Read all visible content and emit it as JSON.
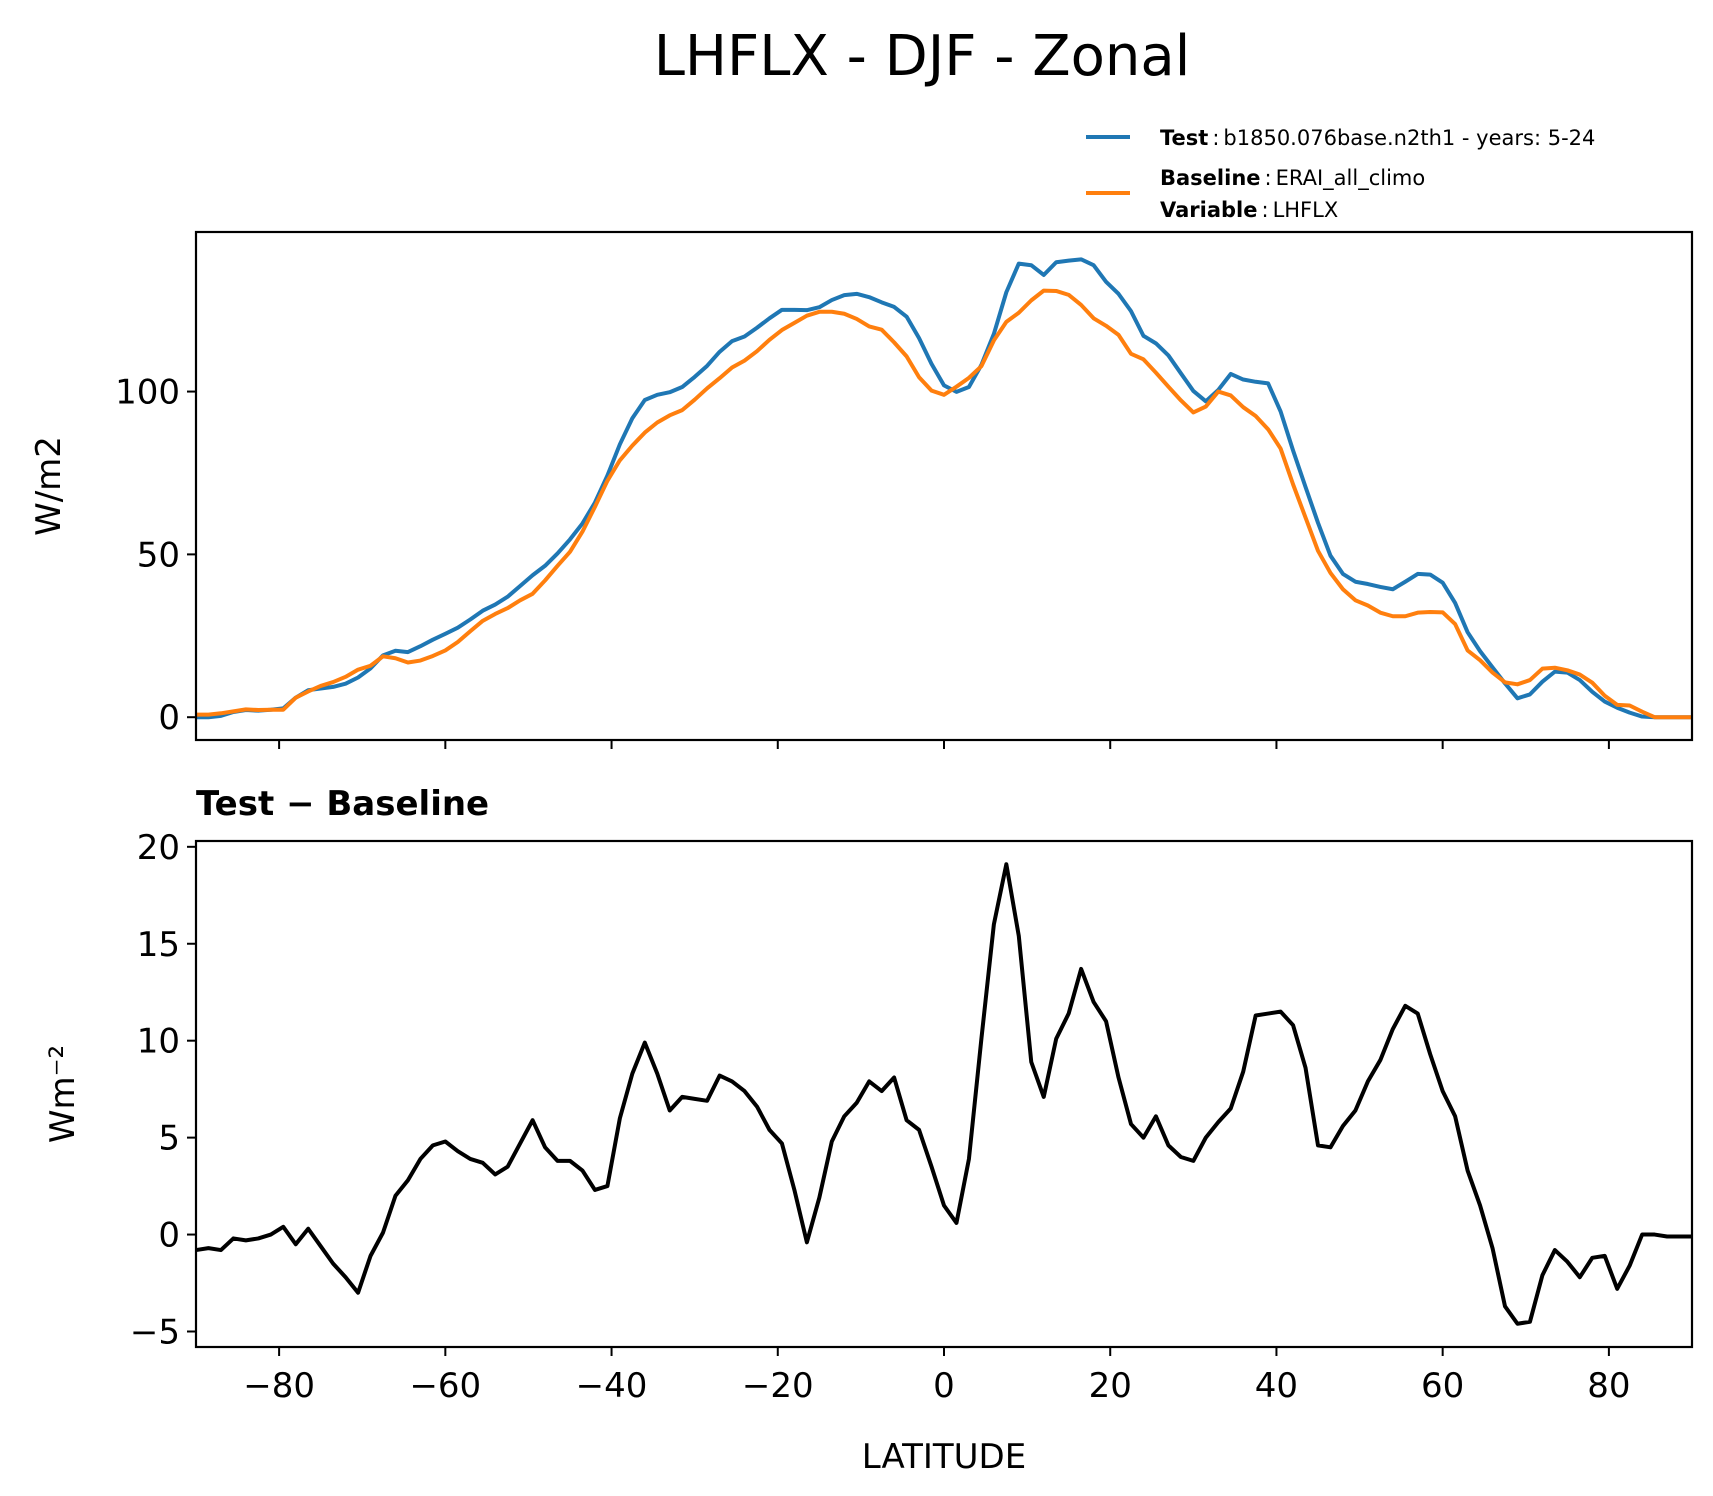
{
  "chart_data": [
    {
      "type": "line",
      "title": "LHFLX - DJF - Zonal",
      "xlabel": "",
      "ylabel": "W/m2",
      "xlim": [
        -90,
        90
      ],
      "ylim": [
        -7,
        149
      ],
      "xticks": [
        -80,
        -60,
        -40,
        -20,
        0,
        20,
        40,
        60,
        80
      ],
      "yticks": [
        0,
        50,
        100
      ],
      "ytick_labels": [
        "0",
        "50",
        "100"
      ],
      "legend": {
        "position": "top-right",
        "entries": [
          {
            "bold": "Test",
            "sep": ":",
            "text": "b1850.076base.n2th1 - years: 5-24",
            "color": "#1f77b4"
          },
          {
            "bold": "Baseline",
            "sep": ":",
            "text": "ERAI_all_climo",
            "color": "#ff7f0e"
          },
          {
            "bold": "Variable",
            "sep": ":",
            "text": "LHFLX"
          }
        ]
      },
      "x": [
        -90,
        -88.5,
        -87,
        -85.5,
        -84,
        -82.5,
        -81,
        -79.5,
        -78,
        -76.5,
        -75,
        -73.5,
        -72,
        -70.5,
        -69,
        -67.5,
        -66,
        -64.5,
        -63,
        -61.5,
        -60,
        -58.5,
        -57,
        -55.5,
        -54,
        -52.5,
        -51,
        -49.5,
        -48,
        -46.5,
        -45,
        -43.5,
        -42,
        -40.5,
        -39,
        -37.5,
        -36,
        -34.5,
        -33,
        -31.5,
        -30,
        -28.5,
        -27,
        -25.5,
        -24,
        -22.5,
        -21,
        -19.5,
        -18,
        -16.5,
        -15,
        -13.5,
        -12,
        -10.5,
        -9,
        -7.5,
        -6,
        -4.5,
        -3,
        -1.5,
        0,
        1.5,
        3,
        4.5,
        6,
        7.5,
        9,
        10.5,
        12,
        13.5,
        15,
        16.5,
        18,
        19.5,
        21,
        22.5,
        24,
        25.5,
        27,
        28.5,
        30,
        31.5,
        33,
        34.5,
        36,
        37.5,
        39,
        40.5,
        42,
        43.5,
        45,
        46.5,
        48,
        49.5,
        51,
        52.5,
        54,
        55.5,
        57,
        58.5,
        60,
        61.5,
        63,
        64.5,
        66,
        67.5,
        69,
        70.5,
        72,
        73.5,
        75,
        76.5,
        78,
        79.5,
        81,
        82.5,
        84,
        85.5,
        87,
        88.5,
        90
      ],
      "series": [
        {
          "name": "Test",
          "color": "#1f77b4",
          "values": [
            0.0,
            0.0,
            0.4,
            1.6,
            2.2,
            2.0,
            2.3,
            2.7,
            6.0,
            8.3,
            8.8,
            9.3,
            10.3,
            12.2,
            15.0,
            19.0,
            20.4,
            20.0,
            21.8,
            23.8,
            25.6,
            27.5,
            30.0,
            32.7,
            34.6,
            37.0,
            40.3,
            43.6,
            46.5,
            50.3,
            54.6,
            59.5,
            65.9,
            74.2,
            83.8,
            91.8,
            97.4,
            99.0,
            99.8,
            101.4,
            104.5,
            107.9,
            112.2,
            115.5,
            116.9,
            119.6,
            122.5,
            125.1,
            125.1,
            125.0,
            125.9,
            128.1,
            129.6,
            130.0,
            129.0,
            127.4,
            126.0,
            123.0,
            116.4,
            108.5,
            101.9,
            99.9,
            101.4,
            108.2,
            117.7,
            130.5,
            139.3,
            138.8,
            135.8,
            139.7,
            140.2,
            140.6,
            138.8,
            133.7,
            130.0,
            124.7,
            117.1,
            114.8,
            111.1,
            105.6,
            100.2,
            97.0,
            100.5,
            105.4,
            103.7,
            103.0,
            102.5,
            93.9,
            81.9,
            70.7,
            59.7,
            49.6,
            44.0,
            41.6,
            40.9,
            40.0,
            39.3,
            41.6,
            44.0,
            43.8,
            41.3,
            35.1,
            26.1,
            20.3,
            15.3,
            10.4,
            5.8,
            7.0,
            10.9,
            14.0,
            13.7,
            11.4,
            7.8,
            4.8,
            2.9,
            1.4,
            0.2,
            0.0,
            0.0,
            0.0,
            0.0
          ]
        },
        {
          "name": "Baseline",
          "color": "#ff7f0e",
          "values": [
            0.8,
            0.8,
            1.2,
            1.8,
            2.4,
            2.2,
            2.3,
            2.3,
            6.0,
            7.9,
            9.6,
            10.8,
            12.4,
            14.6,
            15.8,
            18.7,
            18.1,
            16.8,
            17.4,
            18.8,
            20.5,
            23.1,
            26.4,
            29.6,
            31.7,
            33.5,
            35.9,
            37.9,
            42.0,
            46.5,
            50.8,
            57.0,
            64.6,
            72.6,
            78.9,
            83.4,
            87.4,
            90.5,
            92.7,
            94.3,
            97.5,
            101.0,
            104.1,
            107.4,
            109.5,
            112.4,
            115.9,
            118.9,
            121.1,
            123.3,
            124.5,
            124.5,
            123.9,
            122.3,
            120.0,
            119.0,
            115.1,
            110.8,
            104.4,
            100.3,
            99.0,
            101.5,
            104.2,
            107.8,
            115.7,
            121.4,
            124.2,
            128.0,
            131.0,
            130.9,
            129.7,
            126.6,
            122.5,
            120.2,
            117.4,
            111.6,
            109.9,
            105.8,
            101.5,
            97.3,
            93.6,
            95.4,
            100.0,
            98.8,
            95.2,
            92.5,
            88.4,
            82.5,
            71.5,
            61.3,
            51.1,
            44.3,
            39.3,
            35.9,
            34.3,
            32.1,
            31.0,
            31.0,
            32.1,
            32.3,
            32.2,
            28.6,
            20.5,
            17.5,
            13.7,
            10.7,
            10.1,
            11.4,
            14.9,
            15.2,
            14.4,
            13.1,
            10.6,
            6.6,
            3.8,
            3.6,
            1.7,
            0.0,
            0.0,
            0.0,
            0.0
          ]
        }
      ]
    },
    {
      "type": "line",
      "title": "Test − Baseline",
      "xlabel": "LATITUDE",
      "ylabel": "Wm⁻²",
      "xlim": [
        -90,
        90
      ],
      "ylim": [
        -5.8,
        20.3
      ],
      "xticks": [
        -80,
        -60,
        -40,
        -20,
        0,
        20,
        40,
        60,
        80
      ],
      "xtick_labels": [
        "−80",
        "−60",
        "−40",
        "−20",
        "0",
        "20",
        "40",
        "60",
        "80"
      ],
      "yticks": [
        -5,
        0,
        5,
        10,
        15,
        20
      ],
      "ytick_labels": [
        "−5",
        "0",
        "5",
        "10",
        "15",
        "20"
      ],
      "x": [
        -90,
        -88.5,
        -87,
        -85.5,
        -84,
        -82.5,
        -81,
        -79.5,
        -78,
        -76.5,
        -75,
        -73.5,
        -72,
        -70.5,
        -69,
        -67.5,
        -66,
        -64.5,
        -63,
        -61.5,
        -60,
        -58.5,
        -57,
        -55.5,
        -54,
        -52.5,
        -51,
        -49.5,
        -48,
        -46.5,
        -45,
        -43.5,
        -42,
        -40.5,
        -39,
        -37.5,
        -36,
        -34.5,
        -33,
        -31.5,
        -30,
        -28.5,
        -27,
        -25.5,
        -24,
        -22.5,
        -21,
        -19.5,
        -18,
        -16.5,
        -15,
        -13.5,
        -12,
        -10.5,
        -9,
        -7.5,
        -6,
        -4.5,
        -3,
        -1.5,
        0,
        1.5,
        3,
        4.5,
        6,
        7.5,
        9,
        10.5,
        12,
        13.5,
        15,
        16.5,
        18,
        19.5,
        21,
        22.5,
        24,
        25.5,
        27,
        28.5,
        30,
        31.5,
        33,
        34.5,
        36,
        37.5,
        39,
        40.5,
        42,
        43.5,
        45,
        46.5,
        48,
        49.5,
        51,
        52.5,
        54,
        55.5,
        57,
        58.5,
        60,
        61.5,
        63,
        64.5,
        66,
        67.5,
        69,
        70.5,
        72,
        73.5,
        75,
        76.5,
        78,
        79.5,
        81,
        82.5,
        84,
        85.5,
        87,
        88.5,
        90
      ],
      "series": [
        {
          "name": "Test − Baseline",
          "color": "#000000",
          "values": [
            -0.8,
            -0.7,
            -0.8,
            -0.2,
            -0.3,
            -0.2,
            0.0,
            0.4,
            -0.5,
            0.3,
            -0.6,
            -1.5,
            -2.2,
            -3.0,
            -1.1,
            0.1,
            2.0,
            2.8,
            3.9,
            4.6,
            4.8,
            4.3,
            3.9,
            3.7,
            3.1,
            3.5,
            4.7,
            5.9,
            4.5,
            3.8,
            3.8,
            3.3,
            2.3,
            2.5,
            6.0,
            8.3,
            9.9,
            8.3,
            6.4,
            7.1,
            7.0,
            6.9,
            8.2,
            7.9,
            7.4,
            6.6,
            5.4,
            4.7,
            2.3,
            -0.4,
            1.9,
            4.8,
            6.1,
            6.8,
            7.9,
            7.4,
            8.1,
            5.9,
            5.4,
            3.5,
            1.5,
            0.6,
            3.9,
            10.1,
            16.0,
            19.1,
            15.4,
            8.9,
            7.1,
            10.1,
            11.4,
            13.7,
            12.0,
            11.0,
            8.1,
            5.7,
            5.0,
            6.1,
            4.6,
            4.0,
            3.8,
            5.0,
            5.8,
            6.5,
            8.4,
            11.3,
            11.4,
            11.5,
            10.8,
            8.6,
            4.6,
            4.5,
            5.6,
            6.4,
            7.9,
            9.0,
            10.6,
            11.8,
            11.4,
            9.3,
            7.4,
            6.1,
            3.3,
            1.5,
            -0.7,
            -3.7,
            -4.6,
            -4.5,
            -2.1,
            -0.8,
            -1.4,
            -2.2,
            -1.2,
            -1.1,
            -2.8,
            -1.6,
            0.0,
            0.0,
            -0.1,
            -0.1,
            -0.1
          ]
        }
      ]
    }
  ]
}
